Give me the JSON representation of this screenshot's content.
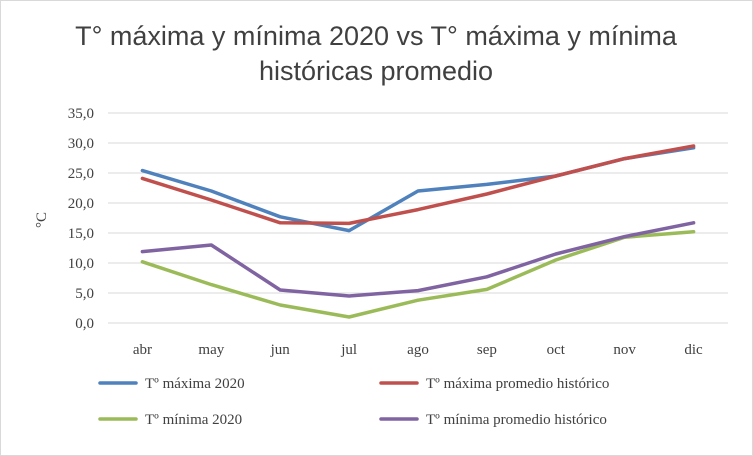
{
  "chart_data": {
    "type": "line",
    "title_lines": [
      "T° máxima y mínima 2020 vs T° máxima y mínima",
      "históricas promedio"
    ],
    "xlabel": "",
    "ylabel": "°C",
    "categories": [
      "abr",
      "may",
      "jun",
      "jul",
      "ago",
      "sep",
      "oct",
      "nov",
      "dic"
    ],
    "ylim": [
      0,
      35
    ],
    "yticks": [
      "0,0",
      "5,0",
      "10,0",
      "15,0",
      "20,0",
      "25,0",
      "30,0",
      "35,0"
    ],
    "grid": true,
    "legend_position": "bottom",
    "series": [
      {
        "name": "Tº máxima 2020",
        "color": "#4f81bd",
        "values": [
          25.4,
          22.0,
          17.7,
          15.4,
          22.0,
          23.1,
          24.5,
          27.4,
          29.2
        ]
      },
      {
        "name": "Tº máxima promedio histórico",
        "color": "#c0504d",
        "values": [
          24.1,
          20.5,
          16.7,
          16.6,
          18.9,
          21.5,
          24.5,
          27.4,
          29.5
        ]
      },
      {
        "name": "Tº mínima 2020",
        "color": "#9bbb59",
        "values": [
          10.2,
          6.4,
          3.0,
          1.0,
          3.8,
          5.6,
          10.5,
          14.3,
          15.2
        ]
      },
      {
        "name": "Tº mínima promedio histórico",
        "color": "#8064a2",
        "values": [
          11.9,
          13.0,
          5.5,
          4.5,
          5.4,
          7.7,
          11.5,
          14.4,
          16.7
        ]
      }
    ]
  }
}
